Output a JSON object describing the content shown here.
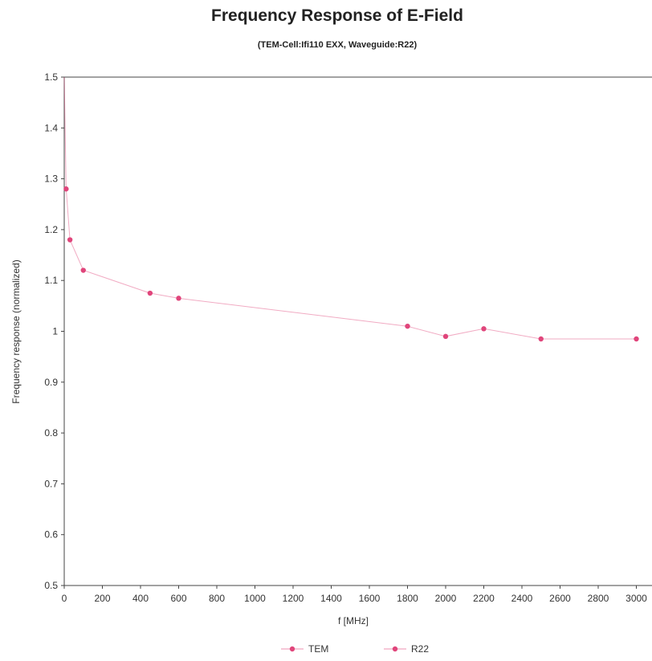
{
  "chart_data": {
    "type": "line",
    "title": "Frequency Response of E-Field",
    "subtitle": "(TEM-Cell:Ifi110 EXX, Waveguide:R22)",
    "xlabel": "f [MHz]",
    "ylabel": "Frequency response (normalized)",
    "xlim": [
      0,
      3200
    ],
    "ylim": [
      0.5,
      1.5
    ],
    "xticks": [
      0,
      200,
      400,
      600,
      800,
      1000,
      1200,
      1400,
      1600,
      1800,
      2000,
      2200,
      2400,
      2600,
      2800,
      3000,
      3200
    ],
    "yticks": [
      0.5,
      0.6,
      0.7,
      0.8,
      0.9,
      1,
      1.1,
      1.2,
      1.3,
      1.4,
      1.5
    ],
    "ytick_labels": [
      "0.5",
      "0.6",
      "0.7",
      "0.8",
      "0.9",
      "1",
      "1.1",
      "1.2",
      "1.3",
      "1.4",
      "1.5"
    ],
    "grid": false,
    "legend_position": "bottom",
    "series": [
      {
        "name": "TEM",
        "color": "#e0457b",
        "points": [
          [
            0,
            1.5
          ],
          [
            10,
            1.28
          ]
        ]
      },
      {
        "name": "R22",
        "color": "#e0457b",
        "points": [
          [
            10,
            1.28
          ],
          [
            30,
            1.18
          ],
          [
            100,
            1.12
          ],
          [
            450,
            1.075
          ],
          [
            600,
            1.065
          ],
          [
            1800,
            1.01
          ],
          [
            2000,
            0.99
          ],
          [
            2200,
            1.005
          ],
          [
            2500,
            0.985
          ],
          [
            3000,
            0.985
          ]
        ]
      }
    ]
  }
}
